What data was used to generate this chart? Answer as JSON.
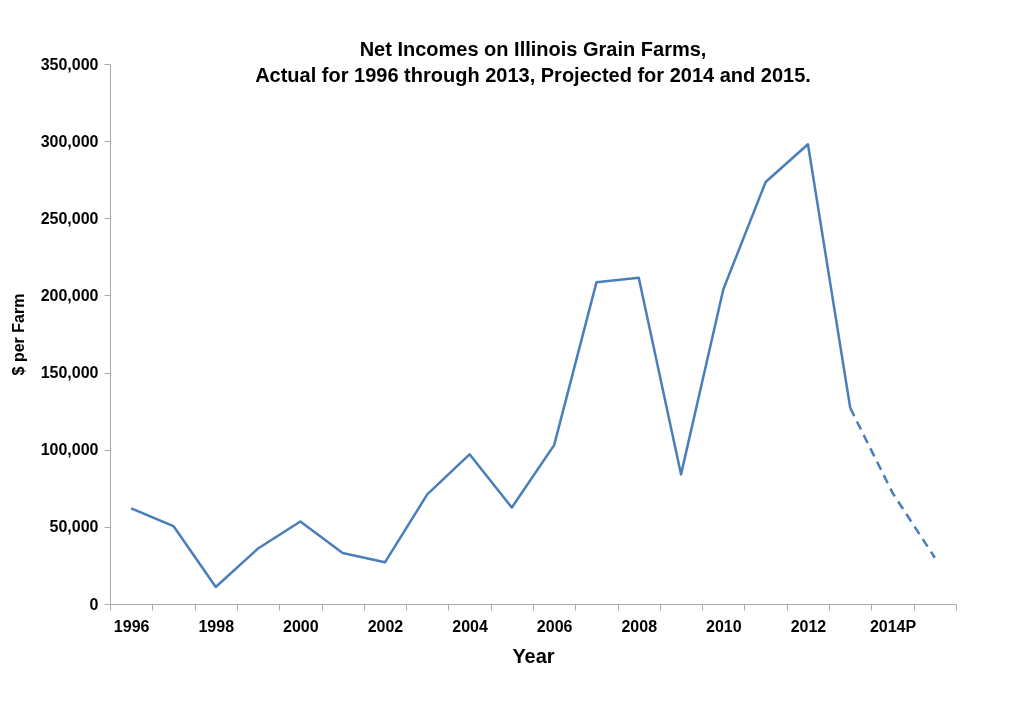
{
  "chart_data": {
    "type": "line",
    "title": "Net Incomes on Illinois  Grain Farms, Actual for 1996 through 2013, Projected for 2014 and 2015.",
    "xlabel": "Year",
    "ylabel": "$ per Farm",
    "categories": [
      "1996",
      null,
      "1998",
      null,
      "2000",
      null,
      "2002",
      null,
      "2004",
      null,
      "2006",
      null,
      "2008",
      null,
      "2010",
      null,
      "2012",
      null,
      "2014P",
      null
    ],
    "series": [
      {
        "color": "#4a7ebb",
        "line_style": "solid",
        "values": [
          62000,
          50500,
          11000,
          36000,
          53500,
          33000,
          27000,
          71000,
          97000,
          62500,
          103000,
          208500,
          211500,
          84000,
          204000,
          273500,
          298000,
          127000,
          null,
          null
        ]
      },
      {
        "color": "#4a7ebb",
        "line_style": "dashed",
        "values": [
          null,
          null,
          null,
          null,
          null,
          null,
          null,
          null,
          null,
          null,
          null,
          null,
          null,
          null,
          null,
          null,
          null,
          127000,
          72000,
          30000
        ]
      }
    ],
    "ylim": [
      0,
      350000
    ],
    "yticks": [
      {
        "value": 0,
        "label": "0"
      },
      {
        "value": 50000,
        "label": "50,000"
      },
      {
        "value": 100000,
        "label": "100,000"
      },
      {
        "value": 150000,
        "label": "150,000"
      },
      {
        "value": 200000,
        "label": "200,000"
      },
      {
        "value": 250000,
        "label": "250,000"
      },
      {
        "value": 300000,
        "label": "300,000"
      },
      {
        "value": 350000,
        "label": "350,000"
      }
    ],
    "grid": false,
    "marker": "none"
  }
}
